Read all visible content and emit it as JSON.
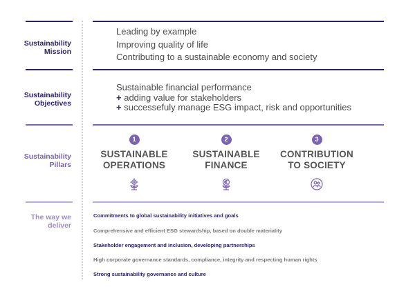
{
  "colors": {
    "dark_navy": "#2a1f6e",
    "purple": "#7b62b5",
    "light_purple": "#b9a8df",
    "lavender": "#9e8cc9",
    "gray_text": "#4a4a4a",
    "pillar_gray": "#555555",
    "deliver_gray": "#777777"
  },
  "mission": {
    "label": "Sustainability\nMission",
    "lines": [
      "Leading by example",
      "Improving quality of life",
      "Contributing to a sustainable economy and society"
    ]
  },
  "objectives": {
    "label": "Sustainability\nObjectives",
    "line1": "Sustainable financial performance",
    "bullet": "+",
    "line2": "adding value for stakeholders",
    "line3": "successefuly manage ESG impact, risk and opportunities"
  },
  "pillars": {
    "label": "Sustainability\nPillars",
    "items": [
      {
        "number": "1",
        "name": "SUSTAINABLE\nOPERATIONS",
        "icon": "plant-gear-icon"
      },
      {
        "number": "2",
        "name": "SUSTAINABLE\nFINANCE",
        "icon": "plant-euro-icon"
      },
      {
        "number": "3",
        "name": "CONTRIBUTION\nTO SOCIETY",
        "icon": "community-icon"
      }
    ]
  },
  "deliver": {
    "label": "The way we\ndeliver",
    "items": [
      {
        "text": "Commitments to global sustainability initiatives and goals",
        "style": "highlight"
      },
      {
        "text": "Comprehensive and efficient ESG stewardship, based on double materiality",
        "style": "muted"
      },
      {
        "text": "Stakeholder engagement and inclusion, developing partnerships",
        "style": "highlight"
      },
      {
        "text": "High corporate governance standards, compliance, integrity and respecting human rights",
        "style": "muted"
      },
      {
        "text": "Strong sustainability governance and culture",
        "style": "highlight"
      }
    ]
  }
}
